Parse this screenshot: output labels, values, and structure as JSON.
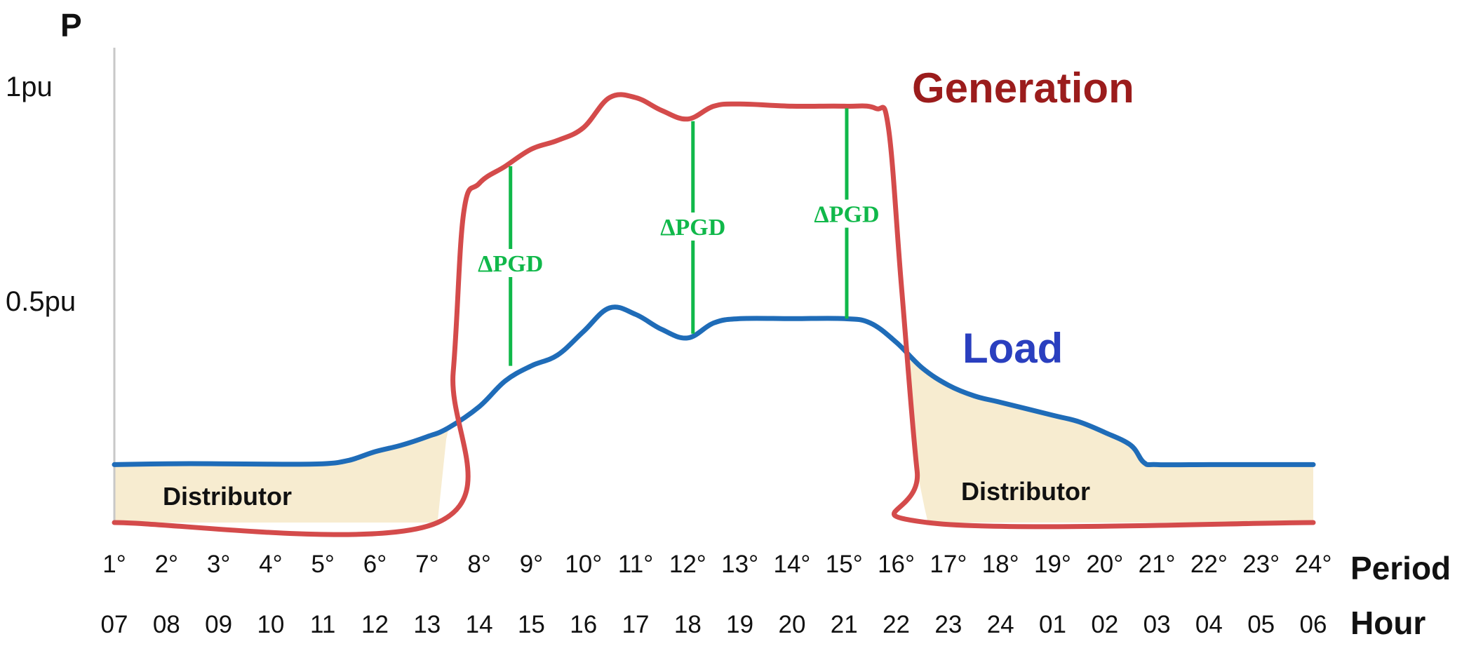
{
  "chart_data": {
    "type": "line",
    "title": "",
    "ylabel": "P",
    "ylim": [
      0,
      1.02
    ],
    "ytick_labels": [
      {
        "value": 1.0,
        "label": "1pu"
      },
      {
        "value": 0.5,
        "label": "0.5pu"
      }
    ],
    "x_row_labels": {
      "period": "Period",
      "hour": "Hour"
    },
    "x_ticks": [
      {
        "x": 1,
        "period": "1°",
        "hour": "07"
      },
      {
        "x": 2,
        "period": "2°",
        "hour": "08"
      },
      {
        "x": 3,
        "period": "3°",
        "hour": "09"
      },
      {
        "x": 4,
        "period": "4°",
        "hour": "10"
      },
      {
        "x": 5,
        "period": "5°",
        "hour": "11"
      },
      {
        "x": 6,
        "period": "6°",
        "hour": "12"
      },
      {
        "x": 7,
        "period": "7°",
        "hour": "13"
      },
      {
        "x": 8,
        "period": "8°",
        "hour": "14"
      },
      {
        "x": 9,
        "period": "9°",
        "hour": "15"
      },
      {
        "x": 10,
        "period": "10°",
        "hour": "16"
      },
      {
        "x": 11,
        "period": "11°",
        "hour": "17"
      },
      {
        "x": 12,
        "period": "12°",
        "hour": "18"
      },
      {
        "x": 13,
        "period": "13°",
        "hour": "19"
      },
      {
        "x": 14,
        "period": "14°",
        "hour": "20"
      },
      {
        "x": 15,
        "period": "15°",
        "hour": "21"
      },
      {
        "x": 16,
        "period": "16°",
        "hour": "22"
      },
      {
        "x": 17,
        "period": "17°",
        "hour": "23"
      },
      {
        "x": 18,
        "period": "18°",
        "hour": "24"
      },
      {
        "x": 19,
        "period": "19°",
        "hour": "01"
      },
      {
        "x": 20,
        "period": "20°",
        "hour": "02"
      },
      {
        "x": 21,
        "period": "21°",
        "hour": "03"
      },
      {
        "x": 22,
        "period": "22°",
        "hour": "04"
      },
      {
        "x": 23,
        "period": "23°",
        "hour": "05"
      },
      {
        "x": 24,
        "period": "24°",
        "hour": "06"
      }
    ],
    "series": [
      {
        "name": "Generation",
        "color": "#d44b4b",
        "label_color": "#9b1c1c",
        "points": [
          [
            1.0,
            0.0
          ],
          [
            7.2,
            0.0
          ],
          [
            7.5,
            0.35
          ],
          [
            7.7,
            0.72
          ],
          [
            8.0,
            0.79
          ],
          [
            8.5,
            0.83
          ],
          [
            9.0,
            0.87
          ],
          [
            9.5,
            0.89
          ],
          [
            10.0,
            0.92
          ],
          [
            10.5,
            0.99
          ],
          [
            11.0,
            0.99
          ],
          [
            11.5,
            0.96
          ],
          [
            12.0,
            0.94
          ],
          [
            12.5,
            0.97
          ],
          [
            13.0,
            0.975
          ],
          [
            14.0,
            0.97
          ],
          [
            15.0,
            0.97
          ],
          [
            15.6,
            0.965
          ],
          [
            15.85,
            0.92
          ],
          [
            16.1,
            0.55
          ],
          [
            16.4,
            0.12
          ],
          [
            16.6,
            0.0
          ],
          [
            24.0,
            0.0
          ]
        ]
      },
      {
        "name": "Load",
        "color": "#1f6cb8",
        "label_color": "#2a3fbf",
        "points": [
          [
            1.0,
            0.135
          ],
          [
            2.0,
            0.137
          ],
          [
            3.0,
            0.137
          ],
          [
            4.0,
            0.136
          ],
          [
            5.0,
            0.137
          ],
          [
            5.5,
            0.145
          ],
          [
            6.0,
            0.165
          ],
          [
            6.5,
            0.18
          ],
          [
            7.0,
            0.2
          ],
          [
            7.4,
            0.22
          ],
          [
            8.0,
            0.27
          ],
          [
            8.5,
            0.33
          ],
          [
            9.0,
            0.365
          ],
          [
            9.5,
            0.39
          ],
          [
            10.0,
            0.445
          ],
          [
            10.5,
            0.5
          ],
          [
            11.0,
            0.485
          ],
          [
            11.5,
            0.45
          ],
          [
            12.0,
            0.43
          ],
          [
            12.5,
            0.465
          ],
          [
            13.0,
            0.475
          ],
          [
            14.0,
            0.475
          ],
          [
            15.0,
            0.475
          ],
          [
            15.5,
            0.465
          ],
          [
            16.0,
            0.42
          ],
          [
            16.5,
            0.36
          ],
          [
            17.0,
            0.32
          ],
          [
            17.5,
            0.295
          ],
          [
            18.0,
            0.28
          ],
          [
            19.0,
            0.25
          ],
          [
            19.5,
            0.235
          ],
          [
            20.0,
            0.21
          ],
          [
            20.5,
            0.18
          ],
          [
            20.75,
            0.14
          ],
          [
            21.0,
            0.135
          ],
          [
            22.0,
            0.135
          ],
          [
            23.0,
            0.135
          ],
          [
            24.0,
            0.135
          ]
        ]
      }
    ],
    "delta_lines": [
      {
        "x": 8.6,
        "y_bottom": 0.365,
        "y_top": 0.83,
        "label": "ΔPGD",
        "label_y": 0.585
      },
      {
        "x": 12.1,
        "y_bottom": 0.44,
        "y_top": 0.935,
        "label": "ΔPGD",
        "label_y": 0.67
      },
      {
        "x": 15.05,
        "y_bottom": 0.475,
        "y_top": 0.965,
        "label": "ΔPGD",
        "label_y": 0.7
      }
    ],
    "delta_color": "#10b84a",
    "fill_color": "#f7ecd0",
    "axis_color": "#c8c8c8",
    "annotations": [
      {
        "text": "Generation",
        "series": "Generation"
      },
      {
        "text": "Load",
        "series": "Load"
      },
      {
        "text": "Distributor",
        "region": "left"
      },
      {
        "text": "Distributor",
        "region": "right"
      }
    ]
  }
}
